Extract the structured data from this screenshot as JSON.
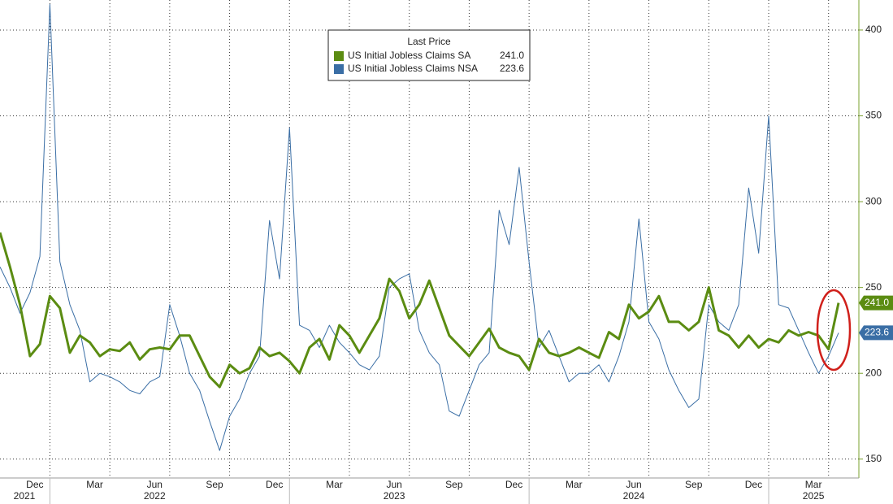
{
  "chart_data": {
    "type": "line",
    "legend_title": "Last Price",
    "categories": [
      null,
      null,
      null,
      "Dec",
      null,
      null,
      null,
      null,
      null,
      "Mar",
      null,
      null,
      null,
      null,
      null,
      "Jun",
      null,
      null,
      null,
      null,
      null,
      "Sep",
      null,
      null,
      null,
      null,
      null,
      "Dec",
      null,
      null,
      null,
      null,
      null,
      "Mar",
      null,
      null,
      null,
      null,
      null,
      "Jun",
      null,
      null,
      null,
      null,
      null,
      "Sep",
      null,
      null,
      null,
      null,
      null,
      "Dec",
      null,
      null,
      null,
      null,
      null,
      "Mar",
      null,
      null,
      null,
      null,
      null,
      "Jun",
      null,
      null,
      null,
      null,
      null,
      "Sep",
      null,
      null,
      null,
      null,
      null,
      "Dec",
      null,
      null,
      null,
      null,
      null,
      "Mar",
      null,
      null,
      null
    ],
    "years": [
      "2021",
      "2022",
      "2023",
      "2024",
      "2025"
    ],
    "series": [
      {
        "name": "US Initial Jobless Claims NSA",
        "color": "#3a6ea5",
        "last_price_label": "223.6",
        "values": [
          262,
          250,
          235,
          247,
          268,
          415,
          265,
          240,
          225,
          195,
          200,
          198,
          195,
          190,
          188,
          195,
          198,
          240,
          222,
          200,
          190,
          172,
          155,
          175,
          185,
          200,
          210,
          289,
          255,
          343,
          228,
          225,
          215,
          228,
          218,
          212,
          205,
          202,
          210,
          250,
          255,
          258,
          225,
          212,
          205,
          178,
          175,
          190,
          205,
          212,
          295,
          275,
          320,
          265,
          215,
          225,
          210,
          195,
          200,
          200,
          205,
          195,
          210,
          230,
          290,
          230,
          220,
          202,
          190,
          180,
          185,
          240,
          230,
          225,
          240,
          308,
          270,
          350,
          240,
          238,
          225,
          212,
          200,
          210,
          223.6
        ]
      },
      {
        "name": "US Initial Jobless Claims SA",
        "color": "#5b8c12",
        "last_price_label": "241.0",
        "values": [
          282,
          262,
          240,
          210,
          217,
          245,
          238,
          212,
          222,
          218,
          210,
          214,
          213,
          218,
          208,
          214,
          215,
          214,
          222,
          222,
          210,
          198,
          192,
          205,
          200,
          203,
          215,
          210,
          212,
          207,
          200,
          215,
          220,
          208,
          228,
          222,
          212,
          222,
          232,
          255,
          248,
          232,
          240,
          254,
          238,
          222,
          216,
          210,
          218,
          226,
          215,
          212,
          210,
          202,
          220,
          212,
          210,
          212,
          215,
          212,
          209,
          224,
          220,
          240,
          232,
          236,
          245,
          230,
          230,
          225,
          230,
          250,
          225,
          222,
          215,
          222,
          215,
          220,
          218,
          225,
          222,
          224,
          222,
          214,
          241
        ]
      }
    ],
    "ylim": [
      139,
      417.5
    ],
    "yticks": [
      150,
      200,
      250,
      300,
      350,
      400
    ],
    "grid": true,
    "y_axis_side": "right",
    "legend": "top-center"
  }
}
